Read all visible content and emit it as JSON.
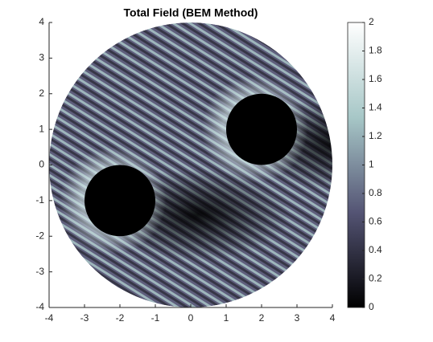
{
  "chart_data": {
    "type": "image",
    "title": "Total Field (BEM Method)",
    "xlim": [
      -4,
      4
    ],
    "ylim": [
      -4,
      4
    ],
    "xticks": [
      -4,
      -3,
      -2,
      -1,
      0,
      1,
      2,
      3,
      4
    ],
    "yticks": [
      -4,
      -3,
      -2,
      -1,
      0,
      1,
      2,
      3,
      4
    ],
    "domain_radius": 4,
    "obstacles": [
      {
        "x": -2,
        "y": -1,
        "r": 1
      },
      {
        "x": 2,
        "y": 1,
        "r": 1
      }
    ],
    "clim": [
      0,
      2
    ],
    "cticks": [
      0,
      0.2,
      0.4,
      0.6,
      0.8,
      1,
      1.2,
      1.4,
      1.6,
      1.8,
      2
    ],
    "colormap": [
      "#000000",
      "#545474",
      "#a7c7c7",
      "#ffffff"
    ]
  }
}
